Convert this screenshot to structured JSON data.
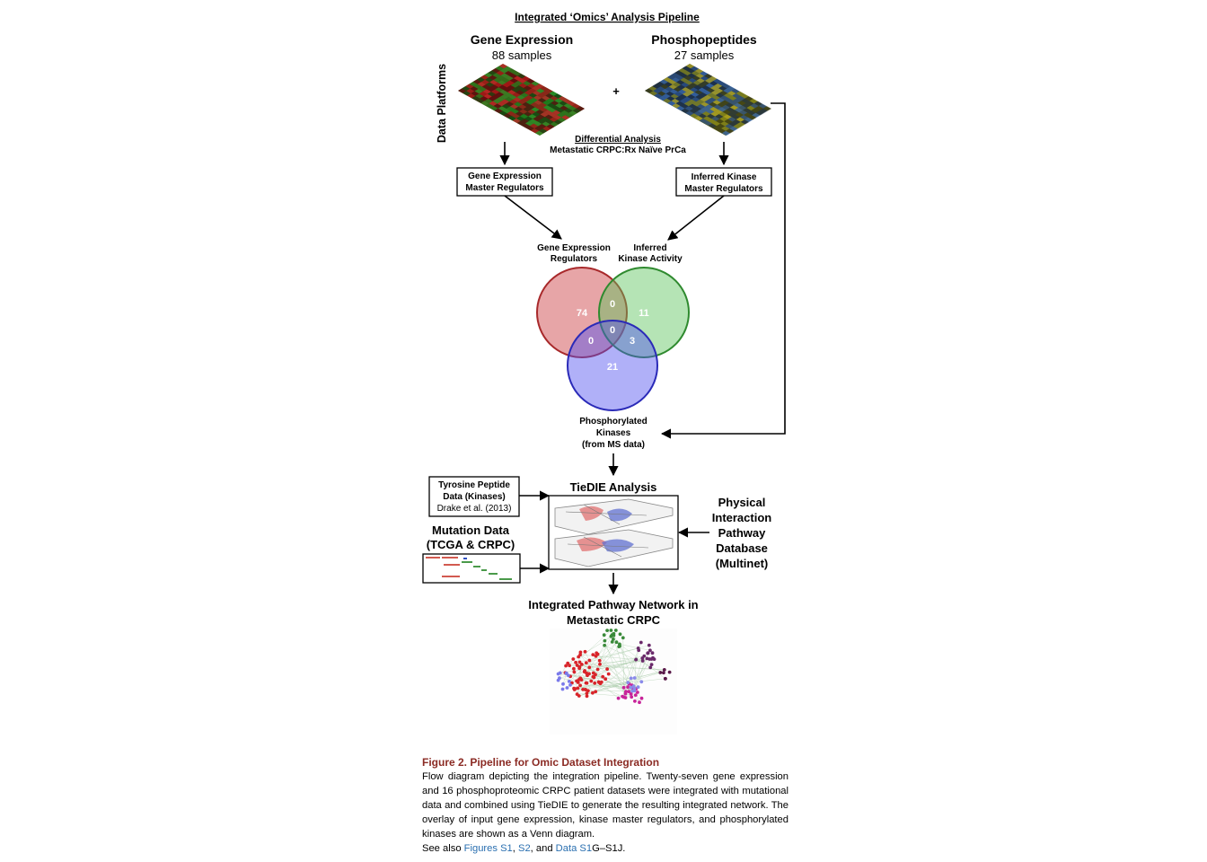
{
  "title": "Integrated ‘Omics’ Analysis Pipeline",
  "side_label": "Data Platforms",
  "gene_expression": {
    "title": "Gene Expression",
    "samples": "88 samples"
  },
  "phosphopeptides": {
    "title": "Phosphopeptides",
    "samples": "27 samples"
  },
  "plus": "+",
  "differential": {
    "title": "Differential Analysis",
    "subtitle": "Metastatic CRPC:Rx Naïve PrCa"
  },
  "boxes": {
    "ge_master": [
      "Gene Expression",
      "Master Regulators"
    ],
    "kinase_master": [
      "Inferred Kinase",
      "Master Regulators"
    ],
    "tyrosine": [
      "Tyrosine Peptide",
      "Data (Kinases)",
      "Drake et al. (2013)"
    ]
  },
  "venn": {
    "labels": {
      "ge": [
        "Gene Expression",
        "Regulators"
      ],
      "kinase": [
        "Inferred",
        "Kinase Activity"
      ],
      "phospho": [
        "Phosphorylated",
        "Kinases",
        "(from MS data)"
      ]
    },
    "counts": {
      "ge_only": "74",
      "kinase_only": "11",
      "phospho_only": "21",
      "ge_kinase": "0",
      "ge_phospho": "0",
      "kinase_phospho": "3",
      "all": "0"
    },
    "colors": {
      "ge": "#c0393b",
      "kinase": "#3a9a3a",
      "phospho": "#3a3ad0"
    }
  },
  "tiedie": {
    "title": "TieDIE Analysis"
  },
  "mutation": {
    "title": "Mutation Data",
    "subtitle": "(TCGA & CRPC)"
  },
  "physical": [
    "Physical",
    "Interaction",
    "Pathway",
    "Database",
    "(Multinet)"
  ],
  "network": {
    "title": [
      "Integrated Pathway Network in",
      "Metastatic CRPC"
    ]
  },
  "caption": {
    "title": "Figure 2.  Pipeline for Omic Dataset Integration",
    "body": "Flow diagram depicting the integration pipeline. Twenty-seven gene expression and 16 phosphoproteomic CRPC patient datasets were integrated with mutational data and combined using TieDIE to generate the resulting integrated network. The overlay of input gene expression, kinase master regulators, and phosphorylated kinases are shown as a Venn diagram.",
    "see_also_prefix": "See also ",
    "link1": "Figures S1",
    "sep1": ", ",
    "link2": "S2",
    "sep2": ", and ",
    "link3": "Data S1",
    "suffix": "G–S1J."
  }
}
